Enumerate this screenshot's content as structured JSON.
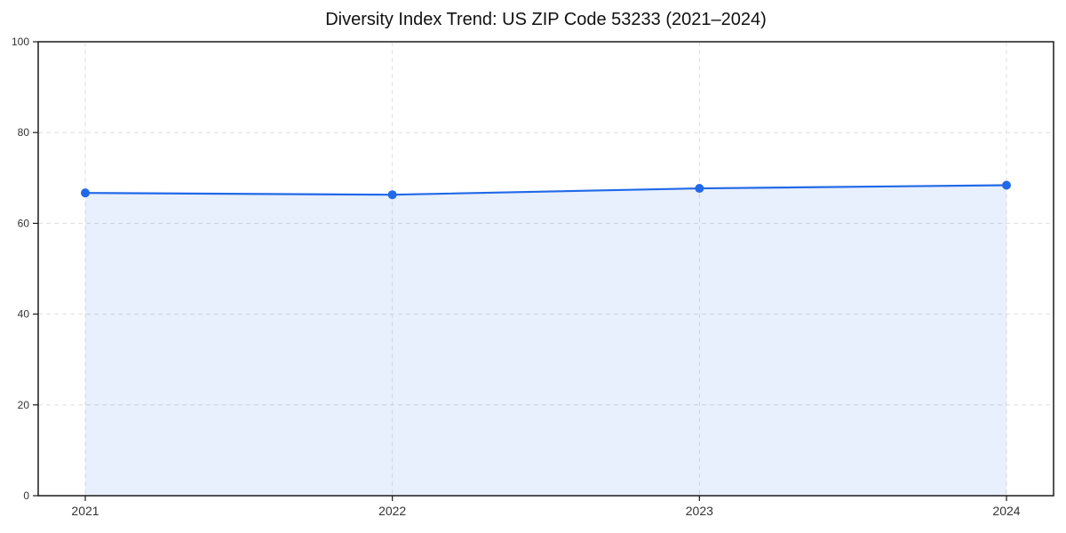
{
  "chart_data": {
    "type": "area",
    "title": "Diversity Index Trend: US ZIP Code 53233 (2021–2024)",
    "x": [
      "2021",
      "2022",
      "2023",
      "2024"
    ],
    "series": [
      {
        "name": "Diversity Index",
        "values": [
          66.7,
          66.3,
          67.7,
          68.4
        ]
      }
    ],
    "xlabel": "",
    "ylabel": "",
    "ylim": [
      0,
      100
    ],
    "yticks": [
      0,
      20,
      40,
      60,
      80,
      100
    ],
    "grid": {
      "enabled": true,
      "style": "dashed",
      "axes": "both"
    },
    "legend": "none",
    "colors": {
      "line": "#2169e8",
      "marker": "#2169e8",
      "fill": "#2169e8",
      "fill_opacity": 0.1,
      "gridline": "#dfdfdf",
      "spine": "#1a1a1a",
      "tick_label": "#333333",
      "title": "#111111",
      "background": "#ffffff"
    }
  }
}
